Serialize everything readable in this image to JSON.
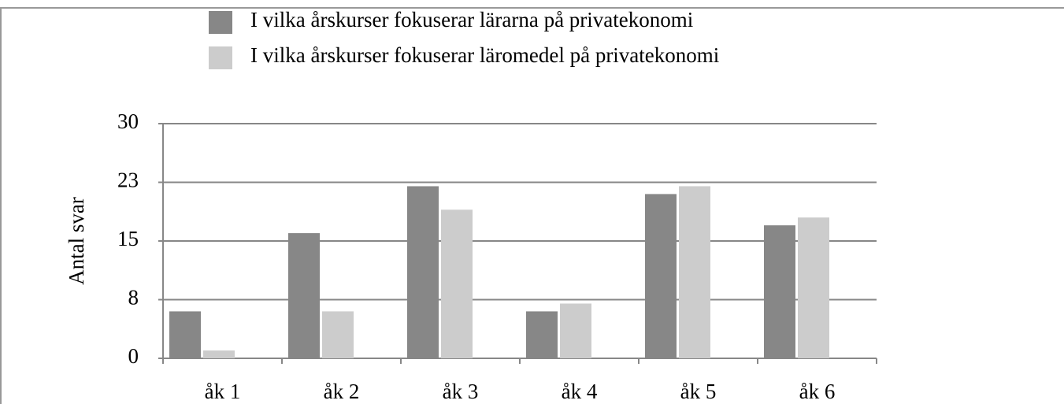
{
  "chart_data": {
    "type": "bar",
    "y_label": "Antal svar",
    "categories": [
      "åk 1",
      "åk 2",
      "åk 3",
      "åk 4",
      "åk 5",
      "åk 6"
    ],
    "series": [
      {
        "name": "I vilka årskurser fokuserar lärarna på privatekonomi",
        "color": "#878787",
        "values": [
          6,
          16,
          22,
          6,
          21,
          17
        ]
      },
      {
        "name": "I vilka årskurser fokuserar läromedel på privatekonomi",
        "color": "#cccccc",
        "values": [
          1,
          6,
          19,
          7,
          22,
          18
        ]
      }
    ],
    "ylim": [
      0,
      30
    ],
    "yticks": [
      0,
      {
        "value": 7.5,
        "label": "8"
      },
      15,
      {
        "value": 22.5,
        "label": "23"
      },
      30
    ],
    "grid": true
  }
}
